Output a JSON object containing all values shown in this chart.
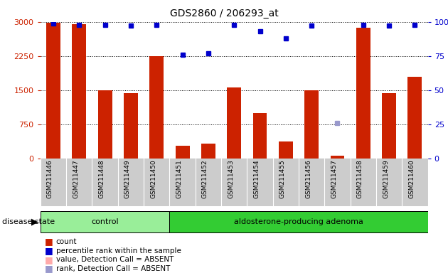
{
  "title": "GDS2860 / 206293_at",
  "samples": [
    "GSM211446",
    "GSM211447",
    "GSM211448",
    "GSM211449",
    "GSM211450",
    "GSM211451",
    "GSM211452",
    "GSM211453",
    "GSM211454",
    "GSM211455",
    "GSM211456",
    "GSM211457",
    "GSM211458",
    "GSM211459",
    "GSM211460"
  ],
  "bar_values": [
    2980,
    2950,
    1500,
    1430,
    2250,
    280,
    330,
    1560,
    1000,
    370,
    1500,
    60,
    2870,
    1430,
    1790
  ],
  "rank_values": [
    99,
    98,
    98,
    97,
    98,
    76,
    77,
    98,
    93,
    88,
    97,
    26,
    98,
    97,
    98
  ],
  "absent_rank_idx": 11,
  "groups": [
    {
      "label": "control",
      "start": 0,
      "end": 5,
      "color": "#99ee99"
    },
    {
      "label": "aldosterone-producing adenoma",
      "start": 5,
      "end": 15,
      "color": "#33cc33"
    }
  ],
  "ylim_left": [
    0,
    3000
  ],
  "ylim_right": [
    0,
    100
  ],
  "yticks_left": [
    0,
    750,
    1500,
    2250,
    3000
  ],
  "yticks_right": [
    0,
    25,
    50,
    75,
    100
  ],
  "bar_color": "#cc2200",
  "rank_color": "#0000cc",
  "absent_rank_color": "#9999cc",
  "tick_area_color": "#cccccc",
  "disease_state_label": "disease state",
  "legend_items": [
    {
      "label": "count",
      "color": "#cc2200"
    },
    {
      "label": "percentile rank within the sample",
      "color": "#0000cc"
    },
    {
      "label": "value, Detection Call = ABSENT",
      "color": "#ffaaaa"
    },
    {
      "label": "rank, Detection Call = ABSENT",
      "color": "#9999cc"
    }
  ],
  "bar_width": 0.55,
  "title_fontsize": 10,
  "axis_fontsize": 8,
  "label_fontsize": 8
}
